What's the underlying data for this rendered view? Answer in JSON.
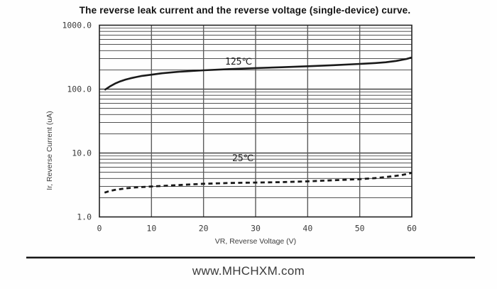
{
  "footer": {
    "site": "www.MHCHXM.com"
  },
  "colors": {
    "background": "#fefefe",
    "curve": "#1a1a1a",
    "grid_minor": "#3a3a3a",
    "grid_decade": "#2a2a2a",
    "grid_vertical": "#5c5c5c",
    "frame": "#222222",
    "tick_text": "#3d3d3d",
    "title_text": "#111111"
  },
  "chart_data": {
    "type": "line",
    "title": "The reverse leak current and the reverse voltage (single-device) curve.",
    "xlabel": "VR, Reverse Voltage (V)",
    "ylabel": "Ir, Reverse Current (uA)",
    "x_scale": "linear",
    "y_scale": "log",
    "xlim": [
      0,
      60
    ],
    "ylim": [
      1,
      1000
    ],
    "x_ticks": [
      0,
      10,
      20,
      30,
      40,
      50,
      60
    ],
    "y_ticks": [
      {
        "value": 1,
        "label": "1.0"
      },
      {
        "value": 10,
        "label": "10.0"
      },
      {
        "value": 100,
        "label": "100.0"
      },
      {
        "value": 1000,
        "label": "1000.0"
      }
    ],
    "grid": "full frame; vertical lines every 10 V; horizontal log-decade lines with minor lines at 2-9 per decade",
    "legend_position": "inline labels above each curve",
    "series": [
      {
        "name": "125C",
        "label": "125℃",
        "style": "solid",
        "points": [
          [
            1,
            97
          ],
          [
            2,
            110
          ],
          [
            3,
            122
          ],
          [
            4,
            132
          ],
          [
            5,
            141
          ],
          [
            6,
            148
          ],
          [
            7,
            154
          ],
          [
            8,
            160
          ],
          [
            10,
            168
          ],
          [
            12,
            177
          ],
          [
            15,
            186
          ],
          [
            18,
            193
          ],
          [
            20,
            197
          ],
          [
            25,
            206
          ],
          [
            30,
            213
          ],
          [
            35,
            220
          ],
          [
            40,
            228
          ],
          [
            45,
            237
          ],
          [
            50,
            248
          ],
          [
            53,
            256
          ],
          [
            55,
            263
          ],
          [
            57,
            276
          ],
          [
            59,
            297
          ],
          [
            60,
            313
          ]
        ]
      },
      {
        "name": "25C",
        "label": "25℃",
        "style": "dashed",
        "points": [
          [
            1,
            2.4
          ],
          [
            2,
            2.55
          ],
          [
            3,
            2.65
          ],
          [
            4,
            2.72
          ],
          [
            5,
            2.8
          ],
          [
            7,
            2.9
          ],
          [
            10,
            3.0
          ],
          [
            13,
            3.08
          ],
          [
            15,
            3.15
          ],
          [
            20,
            3.3
          ],
          [
            25,
            3.4
          ],
          [
            30,
            3.45
          ],
          [
            35,
            3.5
          ],
          [
            40,
            3.6
          ],
          [
            45,
            3.75
          ],
          [
            50,
            3.9
          ],
          [
            53,
            4.05
          ],
          [
            55,
            4.2
          ],
          [
            58,
            4.5
          ],
          [
            60,
            4.9
          ]
        ]
      }
    ]
  }
}
